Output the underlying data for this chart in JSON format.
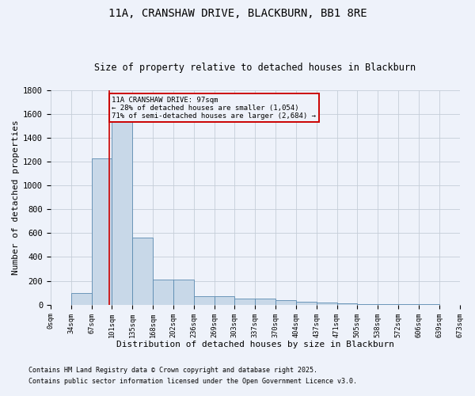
{
  "title1": "11A, CRANSHAW DRIVE, BLACKBURN, BB1 8RE",
  "title2": "Size of property relative to detached houses in Blackburn",
  "xlabel": "Distribution of detached houses by size in Blackburn",
  "ylabel": "Number of detached properties",
  "footnote1": "Contains HM Land Registry data © Crown copyright and database right 2025.",
  "footnote2": "Contains public sector information licensed under the Open Government Licence v3.0.",
  "bin_labels": [
    "0sqm",
    "34sqm",
    "67sqm",
    "101sqm",
    "135sqm",
    "168sqm",
    "202sqm",
    "236sqm",
    "269sqm",
    "303sqm",
    "337sqm",
    "370sqm",
    "404sqm",
    "437sqm",
    "471sqm",
    "505sqm",
    "538sqm",
    "572sqm",
    "606sqm",
    "639sqm",
    "673sqm"
  ],
  "bar_values": [
    0,
    95,
    1230,
    1540,
    560,
    210,
    210,
    70,
    70,
    50,
    50,
    35,
    25,
    15,
    10,
    5,
    3,
    2,
    1,
    0
  ],
  "n_bins": 20,
  "property_size_bin": 2.85,
  "property_size_label": "97sqm",
  "bar_color": "#c8d8e8",
  "bar_edge_color": "#5a8ab0",
  "line_color": "#cc0000",
  "annotation_line1": "11A CRANSHAW DRIVE: 97sqm",
  "annotation_line2": "← 28% of detached houses are smaller (1,054)",
  "annotation_line3": "71% of semi-detached houses are larger (2,684) →",
  "annotation_box_color": "#cc0000",
  "ylim": [
    0,
    1800
  ],
  "bg_color": "#eef2fa",
  "grid_color": "#c5cdd8",
  "yticks": [
    0,
    200,
    400,
    600,
    800,
    1000,
    1200,
    1400,
    1600,
    1800
  ]
}
